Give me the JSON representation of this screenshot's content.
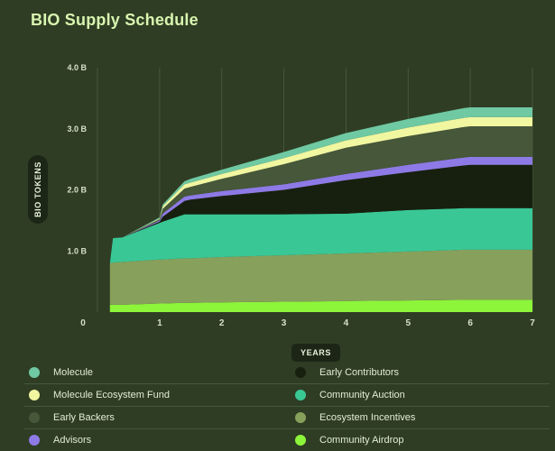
{
  "chart_data": {
    "type": "area",
    "stacked": true,
    "title": "BIO Supply Schedule",
    "xlabel": "YEARS",
    "ylabel": "BIO TOKENS",
    "xlim": [
      0,
      7
    ],
    "ylim": [
      0,
      4.0
    ],
    "x_ticks": [
      "0",
      "1",
      "2",
      "3",
      "4",
      "5",
      "6",
      "7"
    ],
    "y_ticks": [
      "1.0 B",
      "2.0 B",
      "3.0 B",
      "4.0 B"
    ],
    "y_tick_values": [
      1.0,
      2.0,
      3.0,
      4.0
    ],
    "grid": "vertical",
    "legend_position": "bottom",
    "x": [
      0.2,
      0.25,
      0.4,
      1.0,
      1.05,
      1.4,
      1.5,
      2,
      3,
      4,
      5,
      5.9,
      6,
      7
    ],
    "series": [
      {
        "name": "Community Airdrop",
        "color": "#8df53a",
        "values": [
          0.12,
          0.12,
          0.12,
          0.14,
          0.14,
          0.15,
          0.15,
          0.16,
          0.17,
          0.18,
          0.19,
          0.2,
          0.2,
          0.2
        ]
      },
      {
        "name": "Ecosystem Incentives",
        "color": "#87a05b",
        "values": [
          0.68,
          0.69,
          0.7,
          0.72,
          0.72,
          0.73,
          0.73,
          0.74,
          0.76,
          0.78,
          0.8,
          0.82,
          0.82,
          0.82
        ]
      },
      {
        "name": "Community Auction",
        "color": "#3ac796",
        "values": [
          0.0,
          0.4,
          0.4,
          0.6,
          0.62,
          0.72,
          0.72,
          0.7,
          0.67,
          0.65,
          0.68,
          0.68,
          0.68,
          0.68
        ]
      },
      {
        "name": "Early Contributors",
        "color": "#17200f",
        "values": [
          0.0,
          0.0,
          0.0,
          0.02,
          0.08,
          0.22,
          0.24,
          0.3,
          0.4,
          0.55,
          0.62,
          0.7,
          0.71,
          0.71
        ]
      },
      {
        "name": "Advisors",
        "color": "#8e7ae6",
        "values": [
          0.0,
          0.0,
          0.0,
          0.02,
          0.05,
          0.07,
          0.07,
          0.08,
          0.09,
          0.1,
          0.12,
          0.13,
          0.13,
          0.13
        ]
      },
      {
        "name": "Early Backers",
        "color": "#46573a",
        "values": [
          0.0,
          0.0,
          0.0,
          0.02,
          0.08,
          0.13,
          0.14,
          0.2,
          0.33,
          0.43,
          0.47,
          0.5,
          0.5,
          0.5
        ]
      },
      {
        "name": "Molecule Ecosystem Fund",
        "color": "#f1f6a0",
        "values": [
          0.0,
          0.0,
          0.0,
          0.01,
          0.04,
          0.07,
          0.07,
          0.08,
          0.1,
          0.12,
          0.14,
          0.15,
          0.15,
          0.15
        ]
      },
      {
        "name": "Molecule",
        "color": "#6fc9a2",
        "values": [
          0.0,
          0.0,
          0.0,
          0.02,
          0.03,
          0.05,
          0.06,
          0.07,
          0.1,
          0.12,
          0.14,
          0.16,
          0.16,
          0.16
        ]
      }
    ]
  },
  "legend": {
    "left": [
      {
        "label": "Molecule",
        "color": "#6fc9a2"
      },
      {
        "label": "Molecule Ecosystem Fund",
        "color": "#f1f6a0"
      },
      {
        "label": "Early Backers",
        "color": "#46573a"
      },
      {
        "label": "Advisors",
        "color": "#8e7ae6"
      }
    ],
    "right": [
      {
        "label": "Early Contributors",
        "color": "#17200f"
      },
      {
        "label": "Community Auction",
        "color": "#3ac796"
      },
      {
        "label": "Ecosystem Incentives",
        "color": "#87a05b"
      },
      {
        "label": "Community Airdrop",
        "color": "#8df53a"
      }
    ]
  }
}
